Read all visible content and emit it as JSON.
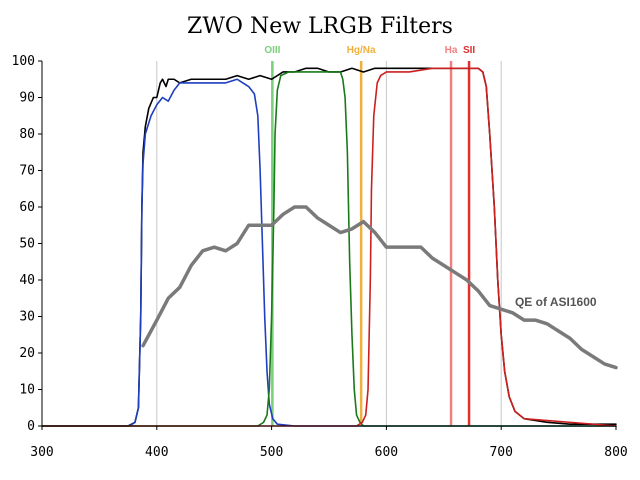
{
  "chart_data": {
    "type": "line",
    "title": "ZWO New LRGB Filters",
    "xlabel": "",
    "ylabel": "",
    "xlim": [
      300,
      800
    ],
    "ylim": [
      0,
      100
    ],
    "x_ticks": [
      300,
      400,
      500,
      600,
      700,
      800
    ],
    "y_ticks": [
      0,
      10,
      20,
      30,
      40,
      50,
      60,
      70,
      80,
      90,
      100
    ],
    "grid": "vertical",
    "emission_lines": [
      {
        "label": "OIII",
        "x": 500.7,
        "color": "#7ccf7c"
      },
      {
        "label": "Hg/Na",
        "x": 578,
        "color": "#f0b040"
      },
      {
        "label": "Ha",
        "x": 656.3,
        "color": "#f08080"
      },
      {
        "label": "SII",
        "x": 672,
        "color": "#e03030"
      }
    ],
    "annotations": [
      {
        "text": "QE of ASI1600",
        "x": 712,
        "y": 34
      }
    ],
    "series": [
      {
        "color": "#000000",
        "points": [
          [
            300,
            0
          ],
          [
            375,
            0
          ],
          [
            381,
            1
          ],
          [
            384,
            5
          ],
          [
            386,
            30
          ],
          [
            387,
            60
          ],
          [
            388,
            75
          ],
          [
            390,
            82
          ],
          [
            393,
            87
          ],
          [
            397,
            90
          ],
          [
            400,
            90
          ],
          [
            403,
            94
          ],
          [
            405,
            95
          ],
          [
            408,
            93
          ],
          [
            410,
            95
          ],
          [
            415,
            95
          ],
          [
            420,
            94
          ],
          [
            430,
            95
          ],
          [
            440,
            95
          ],
          [
            450,
            95
          ],
          [
            460,
            95
          ],
          [
            470,
            96
          ],
          [
            480,
            95
          ],
          [
            490,
            96
          ],
          [
            500,
            95
          ],
          [
            510,
            97
          ],
          [
            520,
            97
          ],
          [
            530,
            98
          ],
          [
            540,
            98
          ],
          [
            550,
            97
          ],
          [
            560,
            97
          ],
          [
            570,
            98
          ],
          [
            580,
            97
          ],
          [
            590,
            98
          ],
          [
            600,
            98
          ],
          [
            620,
            98
          ],
          [
            640,
            98
          ],
          [
            660,
            98
          ],
          [
            670,
            98
          ],
          [
            680,
            98
          ],
          [
            684,
            97
          ],
          [
            687,
            93
          ],
          [
            690,
            80
          ],
          [
            694,
            60
          ],
          [
            697,
            40
          ],
          [
            700,
            25
          ],
          [
            703,
            15
          ],
          [
            707,
            8
          ],
          [
            712,
            4
          ],
          [
            720,
            2
          ],
          [
            740,
            1
          ],
          [
            760,
            0.5
          ],
          [
            800,
            0.5
          ]
        ]
      },
      {
        "color": "#1f3fbf",
        "points": [
          [
            300,
            0
          ],
          [
            376,
            0
          ],
          [
            381,
            1
          ],
          [
            384,
            5
          ],
          [
            386,
            30
          ],
          [
            387,
            60
          ],
          [
            388,
            72
          ],
          [
            390,
            80
          ],
          [
            395,
            85
          ],
          [
            400,
            88
          ],
          [
            405,
            90
          ],
          [
            410,
            89
          ],
          [
            415,
            92
          ],
          [
            420,
            94
          ],
          [
            430,
            94
          ],
          [
            440,
            94
          ],
          [
            450,
            94
          ],
          [
            460,
            94
          ],
          [
            470,
            95
          ],
          [
            475,
            94
          ],
          [
            480,
            93
          ],
          [
            485,
            91
          ],
          [
            488,
            85
          ],
          [
            490,
            70
          ],
          [
            492,
            50
          ],
          [
            494,
            30
          ],
          [
            496,
            15
          ],
          [
            498,
            6
          ],
          [
            501,
            2
          ],
          [
            505,
            0.5
          ],
          [
            520,
            0
          ],
          [
            800,
            0
          ]
        ]
      },
      {
        "color": "#1a7a1a",
        "points": [
          [
            300,
            0
          ],
          [
            488,
            0
          ],
          [
            493,
            1
          ],
          [
            496,
            3
          ],
          [
            498,
            10
          ],
          [
            500,
            30
          ],
          [
            502,
            60
          ],
          [
            503,
            80
          ],
          [
            505,
            92
          ],
          [
            508,
            96
          ],
          [
            515,
            97
          ],
          [
            530,
            97
          ],
          [
            550,
            97
          ],
          [
            560,
            97
          ],
          [
            562,
            95
          ],
          [
            564,
            90
          ],
          [
            566,
            75
          ],
          [
            567,
            60
          ],
          [
            568,
            45
          ],
          [
            570,
            25
          ],
          [
            572,
            10
          ],
          [
            574,
            3
          ],
          [
            577,
            1
          ],
          [
            580,
            0
          ],
          [
            800,
            0
          ]
        ]
      },
      {
        "color": "#cc2020",
        "points": [
          [
            300,
            0
          ],
          [
            574,
            0
          ],
          [
            579,
            1
          ],
          [
            582,
            3
          ],
          [
            584,
            10
          ],
          [
            586,
            40
          ],
          [
            587,
            65
          ],
          [
            589,
            85
          ],
          [
            592,
            94
          ],
          [
            595,
            96
          ],
          [
            600,
            97
          ],
          [
            620,
            97
          ],
          [
            640,
            98
          ],
          [
            660,
            98
          ],
          [
            670,
            98
          ],
          [
            680,
            98
          ],
          [
            684,
            97
          ],
          [
            687,
            93
          ],
          [
            690,
            80
          ],
          [
            694,
            60
          ],
          [
            697,
            40
          ],
          [
            700,
            25
          ],
          [
            703,
            15
          ],
          [
            707,
            8
          ],
          [
            712,
            4
          ],
          [
            720,
            2
          ],
          [
            800,
            0
          ]
        ]
      },
      {
        "name": "QE of ASI1600",
        "color": "#7a7a7a",
        "points": [
          [
            388,
            22
          ],
          [
            400,
            29
          ],
          [
            410,
            35
          ],
          [
            420,
            38
          ],
          [
            430,
            44
          ],
          [
            440,
            48
          ],
          [
            450,
            49
          ],
          [
            460,
            48
          ],
          [
            470,
            50
          ],
          [
            480,
            55
          ],
          [
            490,
            55
          ],
          [
            500,
            55
          ],
          [
            510,
            58
          ],
          [
            520,
            60
          ],
          [
            530,
            60
          ],
          [
            540,
            57
          ],
          [
            550,
            55
          ],
          [
            560,
            53
          ],
          [
            570,
            54
          ],
          [
            580,
            56
          ],
          [
            590,
            53
          ],
          [
            600,
            49
          ],
          [
            620,
            49
          ],
          [
            630,
            49
          ],
          [
            640,
            46
          ],
          [
            650,
            44
          ],
          [
            660,
            42
          ],
          [
            670,
            40
          ],
          [
            680,
            37
          ],
          [
            690,
            33
          ],
          [
            700,
            32
          ],
          [
            710,
            31
          ],
          [
            720,
            29
          ],
          [
            730,
            29
          ],
          [
            740,
            28
          ],
          [
            750,
            26
          ],
          [
            760,
            24
          ],
          [
            770,
            21
          ],
          [
            780,
            19
          ],
          [
            790,
            17
          ],
          [
            800,
            16
          ]
        ]
      }
    ]
  }
}
